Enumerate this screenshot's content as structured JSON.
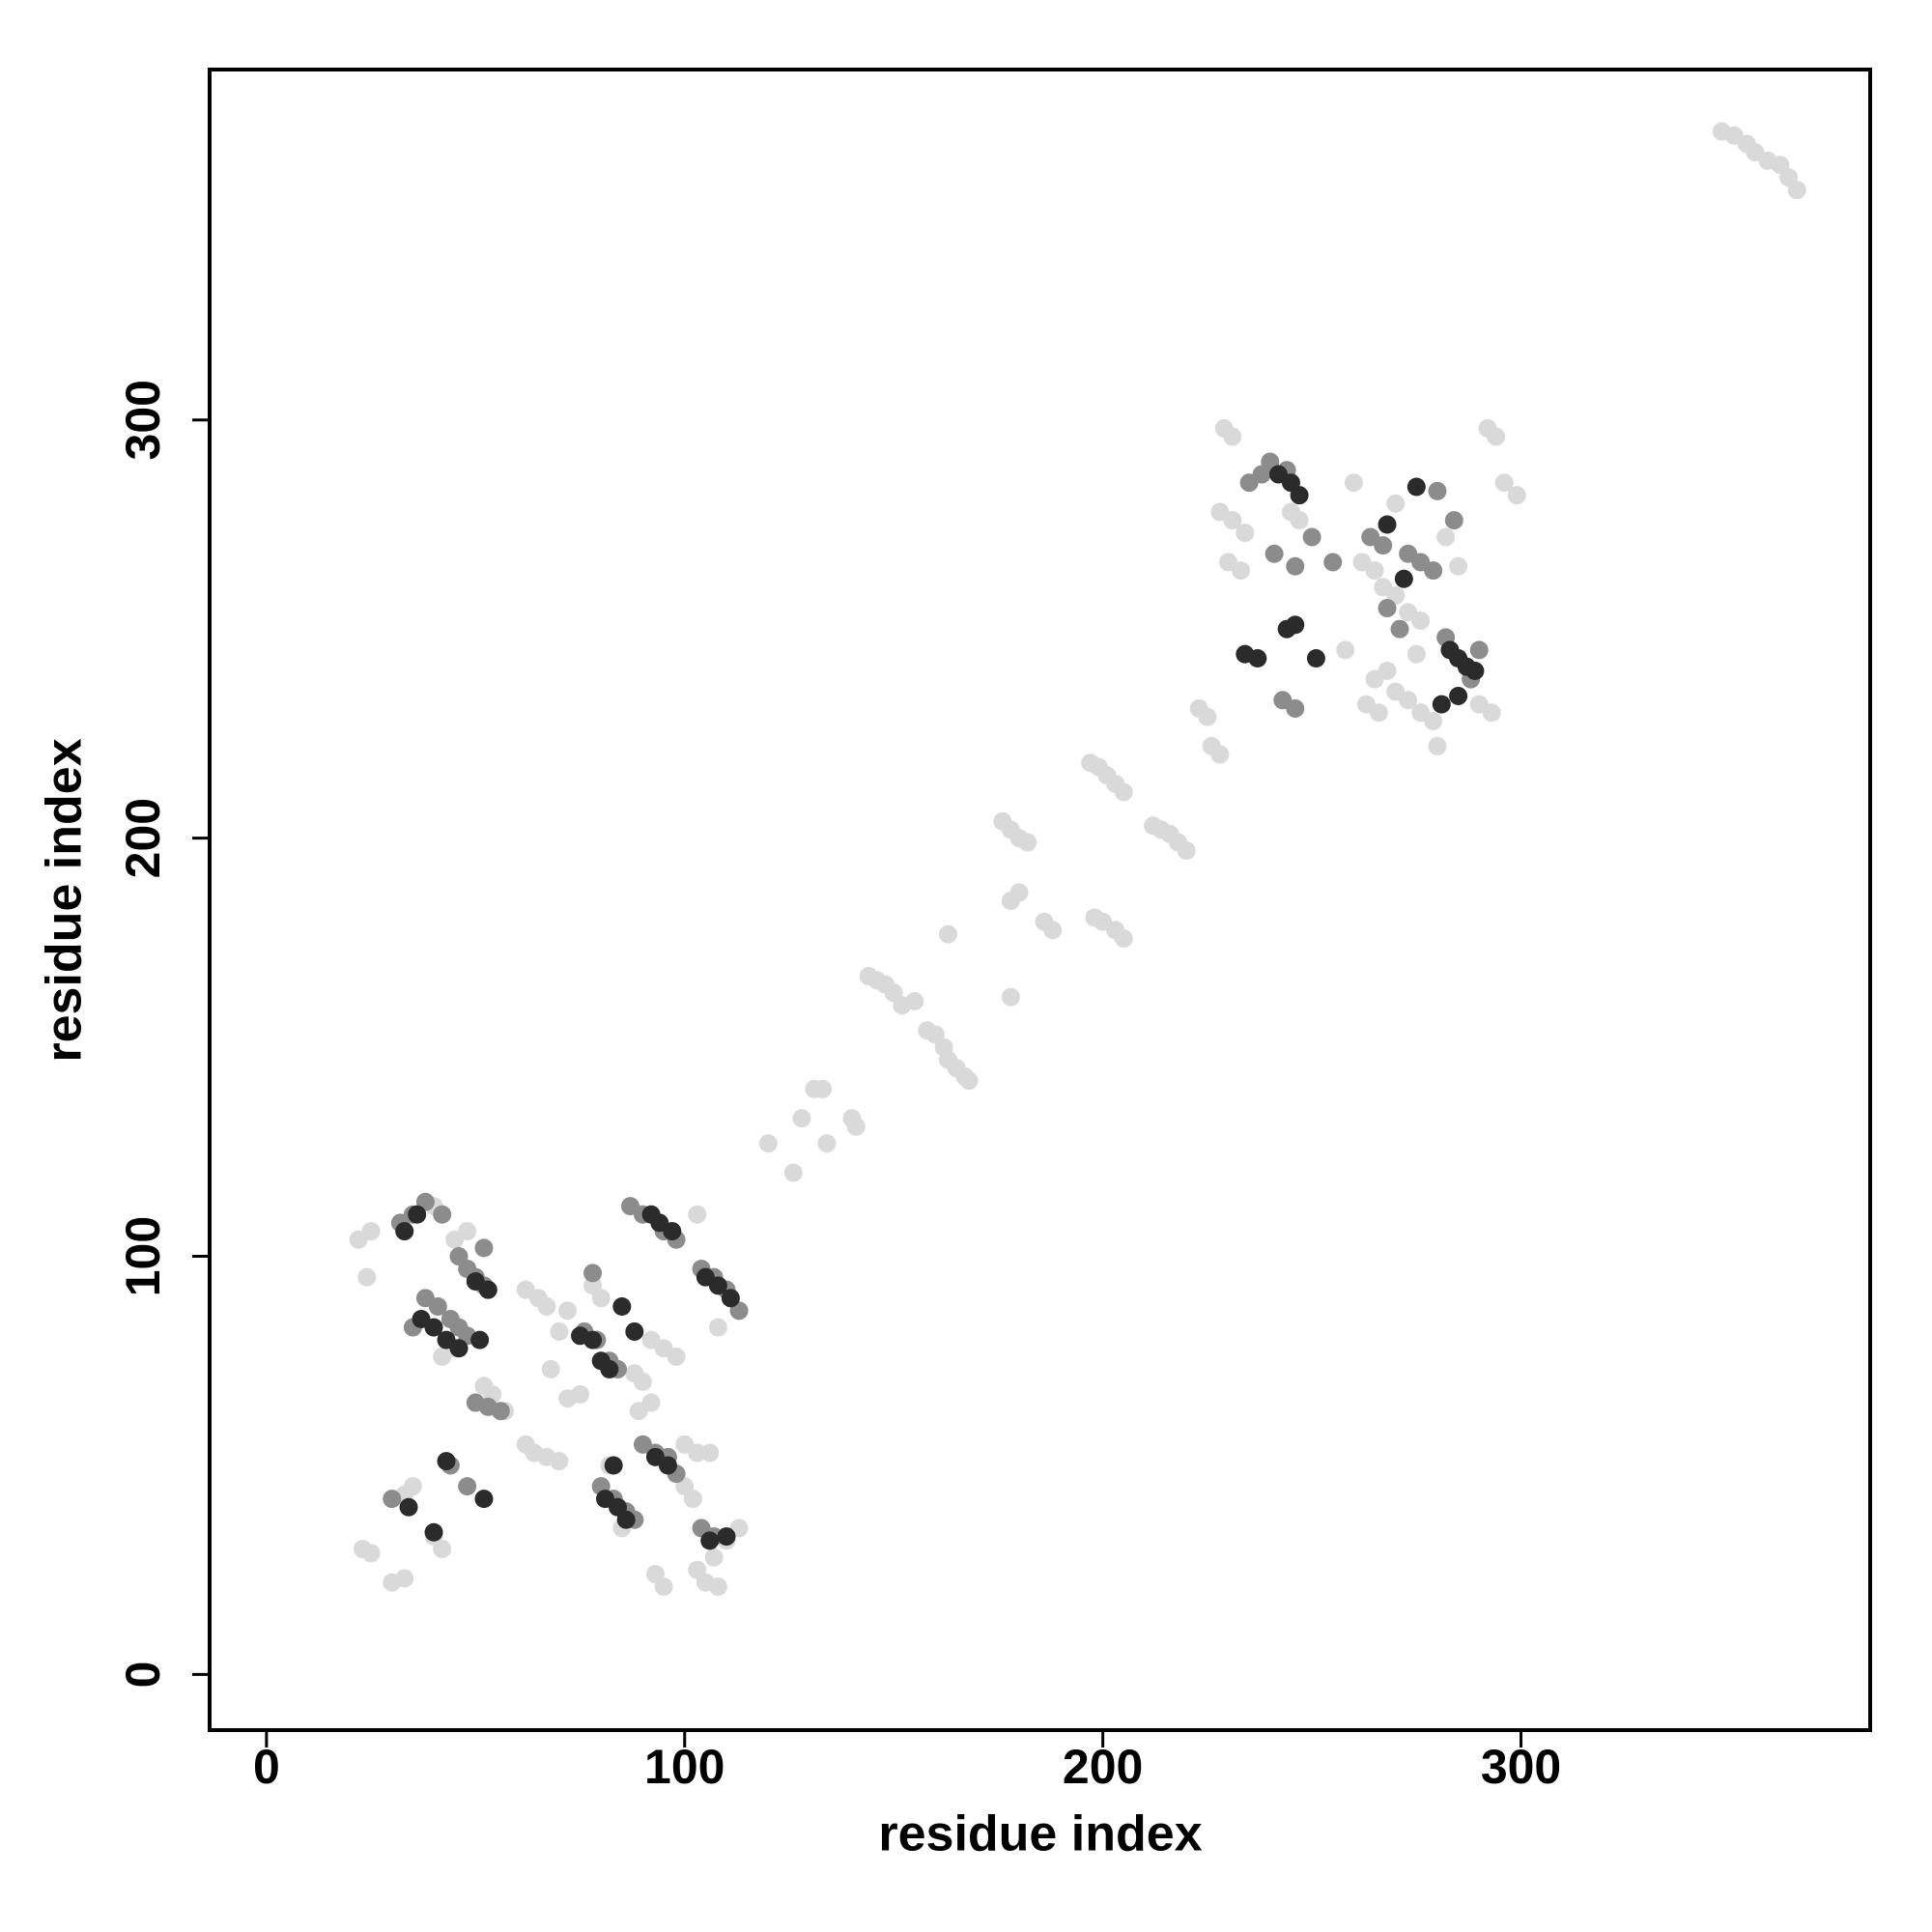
{
  "chart_data": {
    "type": "scatter",
    "x_label": "residue index",
    "y_label": "residue index",
    "xlim": [
      -13.6,
      383.5
    ],
    "ylim": [
      -13.3,
      383.8
    ],
    "xticks": [
      0,
      100,
      200,
      300
    ],
    "yticks": [
      0,
      100,
      200,
      300
    ],
    "grid": false,
    "series": [
      {
        "color": "#d9d9d9",
        "x": [
          120,
          126,
          128,
          131,
          133,
          134,
          140,
          141,
          144,
          146,
          148,
          150,
          152,
          155,
          158,
          160,
          162,
          163,
          165,
          167,
          168,
          163,
          178,
          176,
          178,
          180,
          182,
          180,
          178,
          186,
          188,
          197,
          199,
          201,
          203,
          205,
          198,
          200,
          203,
          205,
          212,
          214,
          216,
          218,
          220,
          223,
          225,
          226,
          228,
          348,
          351,
          354,
          356,
          359,
          362,
          364,
          366,
          229,
          231,
          228,
          231,
          234,
          230,
          233,
          262,
          265,
          267,
          270,
          273,
          276,
          292,
          294,
          296,
          299,
          290,
          293,
          263,
          266,
          270,
          273,
          276,
          279,
          280,
          265,
          268,
          275,
          258,
          245,
          247,
          260,
          270,
          282,
          285,
          22,
          25,
          24,
          23,
          25,
          30,
          33,
          45,
          48,
          45,
          42,
          52,
          54,
          57,
          62,
          64,
          67,
          70,
          68,
          70,
          67,
          72,
          75,
          72,
          62,
          65,
          100,
          103,
          106,
          105,
          108,
          103,
          107,
          110,
          113,
          95,
          93,
          42,
          40,
          33,
          35,
          88,
          90,
          89,
          92,
          100,
          102,
          92,
          95,
          98,
          108,
          85,
          82,
          78,
          80,
          103,
          40
        ],
        "values": [
          127,
          120,
          133,
          140,
          140,
          127,
          133,
          131,
          167,
          166,
          165,
          163,
          160,
          161,
          154,
          153,
          150,
          147,
          145,
          143,
          142,
          177,
          162,
          204,
          202,
          200,
          199,
          187,
          185,
          180,
          178,
          218,
          217,
          215,
          213,
          211,
          181,
          180,
          178,
          176,
          203,
          202,
          201,
          199,
          197,
          231,
          229,
          222,
          220,
          369,
          368,
          366,
          364,
          362,
          361,
          358,
          355,
          298,
          296,
          278,
          276,
          273,
          266,
          264,
          266,
          264,
          260,
          258,
          254,
          252,
          298,
          296,
          285,
          282,
          232,
          230,
          232,
          230,
          235,
          233,
          230,
          228,
          222,
          238,
          240,
          244,
          245,
          278,
          276,
          285,
          280,
          272,
          265,
          104,
          106,
          95,
          30,
          29,
          22,
          23,
          104,
          106,
          78,
          76,
          69,
          67,
          63,
          55,
          53,
          52,
          51,
          73,
          82,
          88,
          87,
          67,
          66,
          92,
          90,
          55,
          53,
          53,
          22,
          21,
          25,
          28,
          32,
          35,
          21,
          24,
          30,
          33,
          43,
          45,
          72,
          70,
          63,
          65,
          45,
          42,
          80,
          78,
          76,
          83,
          35,
          50,
          93,
          90,
          110,
          112
        ]
      },
      {
        "color": "#8c8c8c",
        "x": [
          235,
          238,
          240,
          244,
          241,
          246,
          255,
          264,
          267,
          273,
          276,
          279,
          284,
          290,
          288,
          268,
          271,
          243,
          246,
          250,
          280,
          282,
          32,
          35,
          38,
          42,
          46,
          48,
          50,
          52,
          38,
          41,
          44,
          46,
          48,
          50,
          53,
          56,
          48,
          44,
          76,
          79,
          82,
          84,
          80,
          83,
          86,
          88,
          90,
          93,
          96,
          98,
          104,
          107,
          110,
          113,
          104,
          107,
          87,
          90,
          95,
          98,
          78,
          30,
          35,
          52
        ],
        "values": [
          285,
          287,
          290,
          288,
          268,
          265,
          266,
          272,
          270,
          268,
          266,
          264,
          276,
          245,
          238,
          255,
          250,
          233,
          231,
          272,
          283,
          248,
          108,
          110,
          113,
          110,
          100,
          97,
          95,
          93,
          90,
          88,
          85,
          83,
          81,
          65,
          64,
          63,
          45,
          50,
          82,
          80,
          75,
          73,
          45,
          42,
          39,
          37,
          55,
          53,
          52,
          48,
          97,
          95,
          92,
          87,
          35,
          33,
          112,
          110,
          106,
          104,
          96,
          42,
          83,
          102
        ]
      },
      {
        "color": "#2b2b2b",
        "x": [
          242,
          245,
          247,
          246,
          244,
          234,
          237,
          251,
          283,
          285,
          287,
          289,
          275,
          285,
          281,
          272,
          268,
          33,
          36,
          50,
          53,
          37,
          40,
          43,
          46,
          51,
          52,
          43,
          34,
          40,
          78,
          80,
          82,
          83,
          81,
          84,
          86,
          88,
          85,
          93,
          96,
          92,
          94,
          97,
          105,
          108,
          111,
          106,
          110,
          75
        ],
        "values": [
          287,
          285,
          282,
          251,
          250,
          244,
          243,
          243,
          245,
          243,
          241,
          240,
          284,
          234,
          232,
          262,
          275,
          106,
          110,
          94,
          92,
          85,
          83,
          80,
          78,
          80,
          42,
          51,
          40,
          34,
          80,
          75,
          73,
          50,
          42,
          40,
          37,
          82,
          88,
          52,
          50,
          110,
          108,
          106,
          95,
          93,
          90,
          32,
          33,
          81
        ]
      }
    ]
  }
}
